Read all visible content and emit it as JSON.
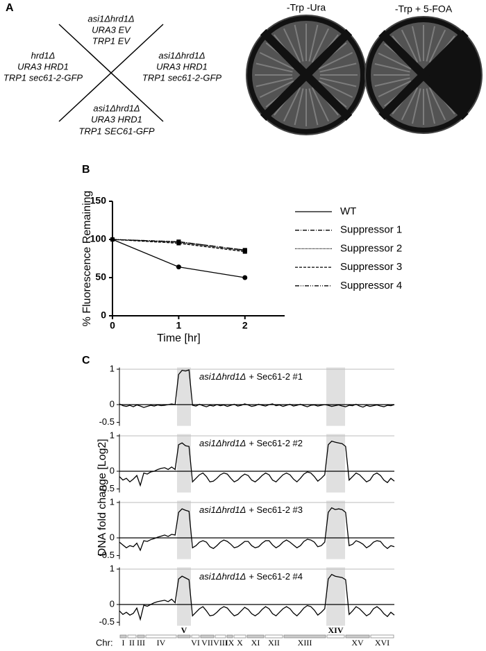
{
  "panel_a": {
    "label": "A",
    "diagram": {
      "top": [
        "asi1Δhrd1Δ",
        "URA3 EV",
        "TRP1 EV"
      ],
      "left": [
        "hrd1Δ",
        "URA3 HRD1",
        "TRP1 sec61-2-GFP"
      ],
      "right": [
        "asi1Δhrd1Δ",
        "URA3 HRD1",
        "TRP1 sec61-2-GFP"
      ],
      "bottom": [
        "asi1Δhrd1Δ",
        "URA3 HRD1",
        "TRP1 SEC61-GFP"
      ]
    },
    "plates": [
      "-Trp -Ura",
      "-Trp + 5-FOA"
    ]
  },
  "chart_data": [
    {
      "type": "line",
      "panel_label": "B",
      "xlabel": "Time [hr]",
      "ylabel": "% Fluorescence Remaining",
      "x": [
        0,
        1,
        2
      ],
      "xlim": [
        0,
        2.6
      ],
      "xticks": [
        0,
        1,
        2
      ],
      "ylim": [
        0,
        150
      ],
      "yticks": [
        0,
        50,
        100,
        150
      ],
      "series": [
        {
          "name": "WT",
          "color": "#000000",
          "dash": "none",
          "marker": "circle",
          "values": [
            100,
            64,
            50
          ]
        },
        {
          "name": "Suppressor 1",
          "color": "#000000",
          "dash": "6,2,1,2",
          "marker": "square",
          "values": [
            100,
            97,
            86
          ]
        },
        {
          "name": "Suppressor 2",
          "color": "#000000",
          "dash": "1,1",
          "marker": "square",
          "values": [
            100,
            96,
            85
          ]
        },
        {
          "name": "Suppressor 3",
          "color": "#000000",
          "dash": "4,2",
          "marker": "square",
          "values": [
            100,
            95,
            84
          ]
        },
        {
          "name": "Suppressor 4",
          "color": "#000000",
          "dash": "6,2,1,2,1,2",
          "marker": "square",
          "values": [
            100,
            97,
            86
          ]
        }
      ]
    },
    {
      "type": "tracks",
      "panel_label": "C",
      "ylabel": "DNA fold change [Log2]",
      "ylim": [
        -0.6,
        1.05
      ],
      "yticks": [
        -0.5,
        0,
        1
      ],
      "chr_prefix": "Chr:",
      "chromosomes": [
        "I",
        "II",
        "III",
        "IV",
        "V",
        "VI",
        "VII",
        "VIII",
        "IX",
        "X",
        "XI",
        "XII",
        "XIII",
        "XIV",
        "XV",
        "XVI"
      ],
      "highlight": [
        4,
        13
      ],
      "tracks": [
        {
          "genotype": "asi1Δhrd1Δ",
          "label": "+ Sec61-2  #1",
          "values": [
            0.02,
            -0.03,
            -0.05,
            -0.02,
            -0.06,
            -0.01,
            -0.04,
            -0.08,
            -0.05,
            -0.02,
            -0.04,
            -0.01,
            -0.03,
            -0.02,
            0.0,
            0.02,
            0.0,
            0.85,
            0.97,
            0.95,
            0.98,
            -0.02,
            -0.04,
            0.01,
            -0.03,
            -0.06,
            -0.02,
            -0.04,
            0.0,
            -0.03,
            -0.01,
            -0.05,
            -0.02,
            0.01,
            -0.04,
            -0.02,
            0.02,
            -0.01,
            -0.05,
            -0.03,
            0.01,
            -0.02,
            -0.04,
            0.0,
            0.02,
            -0.03,
            -0.01,
            -0.05,
            -0.02,
            0.01,
            -0.04,
            -0.02,
            0.01,
            -0.03,
            -0.06,
            -0.02,
            -0.01,
            -0.04,
            -0.02,
            0.0,
            -0.02,
            -0.05,
            -0.03,
            -0.01,
            -0.04,
            -0.06,
            -0.02,
            -0.03,
            0.01,
            -0.04,
            -0.07,
            -0.02,
            -0.05,
            -0.03,
            -0.01,
            -0.04,
            -0.06,
            -0.02,
            -0.03,
            0.0
          ]
        },
        {
          "genotype": "asi1Δhrd1Δ",
          "label": "+ Sec61-2  #2",
          "values": [
            -0.15,
            -0.25,
            -0.2,
            -0.3,
            -0.22,
            -0.12,
            -0.4,
            -0.05,
            -0.08,
            -0.02,
            0.0,
            0.05,
            0.08,
            0.1,
            0.05,
            0.12,
            0.05,
            0.75,
            0.8,
            0.72,
            0.7,
            -0.3,
            -0.2,
            -0.1,
            -0.05,
            -0.15,
            -0.3,
            -0.28,
            -0.2,
            -0.1,
            -0.05,
            -0.08,
            -0.2,
            -0.3,
            -0.25,
            -0.15,
            -0.08,
            -0.12,
            -0.25,
            -0.3,
            -0.22,
            -0.12,
            -0.05,
            -0.1,
            -0.25,
            -0.3,
            -0.2,
            -0.1,
            -0.05,
            -0.1,
            -0.22,
            -0.3,
            -0.2,
            -0.08,
            -0.02,
            -0.05,
            -0.15,
            -0.28,
            -0.2,
            -0.1,
            0.75,
            0.85,
            0.82,
            0.8,
            0.78,
            0.7,
            -0.25,
            -0.15,
            -0.05,
            -0.1,
            -0.2,
            -0.3,
            -0.25,
            -0.1,
            -0.05,
            -0.12,
            -0.25,
            -0.32,
            -0.2,
            -0.28
          ]
        },
        {
          "genotype": "asi1Δhrd1Δ",
          "label": "+ Sec61-2  #3",
          "values": [
            -0.12,
            -0.2,
            -0.28,
            -0.22,
            -0.25,
            -0.15,
            -0.35,
            -0.08,
            -0.1,
            -0.05,
            -0.02,
            0.02,
            0.05,
            0.08,
            0.04,
            0.1,
            0.08,
            0.72,
            0.82,
            0.78,
            0.75,
            -0.28,
            -0.22,
            -0.12,
            -0.08,
            -0.12,
            -0.25,
            -0.3,
            -0.22,
            -0.12,
            -0.06,
            -0.1,
            -0.18,
            -0.28,
            -0.25,
            -0.18,
            -0.1,
            -0.1,
            -0.22,
            -0.28,
            -0.25,
            -0.15,
            -0.08,
            -0.08,
            -0.2,
            -0.28,
            -0.22,
            -0.12,
            -0.06,
            -0.12,
            -0.2,
            -0.28,
            -0.22,
            -0.1,
            -0.04,
            -0.06,
            -0.12,
            -0.25,
            -0.22,
            -0.12,
            0.72,
            0.85,
            0.8,
            0.82,
            0.8,
            0.72,
            -0.22,
            -0.18,
            -0.08,
            -0.12,
            -0.18,
            -0.28,
            -0.22,
            -0.12,
            -0.08,
            -0.1,
            -0.22,
            -0.3,
            -0.22,
            -0.25
          ]
        },
        {
          "genotype": "asi1Δhrd1Δ",
          "label": "+ Sec61-2  #4",
          "values": [
            -0.18,
            -0.28,
            -0.22,
            -0.3,
            -0.25,
            -0.1,
            -0.42,
            -0.02,
            -0.05,
            0.0,
            0.05,
            0.08,
            0.1,
            0.12,
            0.08,
            0.15,
            0.05,
            0.72,
            0.8,
            0.75,
            0.7,
            -0.32,
            -0.22,
            -0.12,
            -0.06,
            -0.18,
            -0.32,
            -0.3,
            -0.22,
            -0.12,
            -0.06,
            -0.1,
            -0.22,
            -0.32,
            -0.28,
            -0.18,
            -0.08,
            -0.14,
            -0.26,
            -0.32,
            -0.25,
            -0.14,
            -0.06,
            -0.12,
            -0.26,
            -0.32,
            -0.22,
            -0.12,
            -0.06,
            -0.12,
            -0.24,
            -0.32,
            -0.22,
            -0.1,
            -0.03,
            -0.06,
            -0.16,
            -0.3,
            -0.22,
            -0.12,
            0.72,
            0.85,
            0.8,
            0.78,
            0.76,
            0.7,
            -0.28,
            -0.18,
            -0.06,
            -0.12,
            -0.22,
            -0.32,
            -0.26,
            -0.12,
            -0.06,
            -0.14,
            -0.26,
            -0.34,
            -0.22,
            -0.3
          ]
        }
      ]
    }
  ]
}
